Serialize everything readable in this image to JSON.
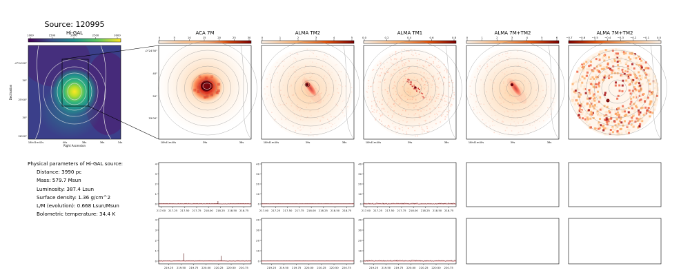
{
  "source_title": "Source: 120995",
  "higal": {
    "title": "Hi-GAL",
    "colorbar_ticks": [
      "1000",
      "1500",
      "2000",
      "2500",
      "3000"
    ],
    "dec_ticks": [
      "-0°24'00\"",
      "30\"",
      "25'00\"",
      "30\"",
      "26'00\""
    ],
    "ra_ticks": [
      "18h41m42s",
      "40s",
      "38s",
      "36s",
      "34s"
    ],
    "xlabel": "Right Ascension",
    "ylabel": "Declination"
  },
  "panels": [
    {
      "title": "ACA 7M",
      "cbar_ticks": [
        "0",
        "5",
        "10",
        "15",
        "20",
        "25",
        "30"
      ],
      "ra_ticks": [
        "18h41m40s",
        "39s",
        "38s"
      ],
      "dec_ticks": [
        "-0°24'30\"",
        "40\"",
        "50\"",
        "25'00\""
      ],
      "style": "aca"
    },
    {
      "title": "ALMA TM2",
      "cbar_ticks": [
        "0",
        "1",
        "2",
        "3",
        "4",
        "5"
      ],
      "ra_ticks": [
        "18h41m40s",
        "39s",
        "38s"
      ],
      "style": "tm2"
    },
    {
      "title": "ALMA TM1",
      "cbar_ticks": [
        "0.0",
        "0.2",
        "0.4",
        "0.6",
        "0.8"
      ],
      "ra_ticks": [
        "18h41m40s",
        "39s",
        "38s"
      ],
      "style": "tm1"
    },
    {
      "title": "ALMA 7M+TM2",
      "cbar_ticks": [
        "0",
        "1",
        "2",
        "3",
        "4",
        "5",
        "6"
      ],
      "ra_ticks": [
        "18h41m40s",
        "39s",
        "38s"
      ],
      "style": "comb"
    },
    {
      "title": "ALMA 7M+TM2",
      "cbar_ticks": [
        "−0.7",
        "−0.6",
        "−0.5",
        "−0.4",
        "−0.3",
        "−0.2",
        "−0.1",
        "0.0"
      ],
      "ra_ticks": [],
      "style": "neg"
    }
  ],
  "params": {
    "heading": "Physical parameters of Hi-GAL source:",
    "lines": [
      "Distance: 3990 pc",
      "Mass: 579.7 Msun",
      "Luminosity: 387.4 Lsun",
      "Surface density: 1.36 g/cm^2",
      "L/M (evolution): 0.668 Lsun/Msun",
      "Bolometric temperature: 34.4 K"
    ]
  },
  "chart_data": {
    "type": "line",
    "spectra_rows": [
      {
        "x_ticks": [
          "217.00",
          "217.25",
          "217.50",
          "217.75",
          "218.00",
          "218.25",
          "218.50",
          "218.75"
        ],
        "xlim": [
          216.95,
          218.9
        ]
      },
      {
        "x_ticks": [
          "219.25",
          "219.50",
          "219.75",
          "220.00",
          "220.25",
          "220.50",
          "220.75"
        ],
        "xlim": [
          219.05,
          220.9
        ]
      }
    ],
    "spectra_panels": [
      {
        "ylim": [
          0,
          4
        ],
        "y_ticks": [
          "0",
          "1",
          "2",
          "3",
          "4"
        ],
        "spikes": [
          [
            [
              218.2,
              0.28
            ]
          ],
          [
            [
              219.55,
              0.75
            ],
            [
              220.3,
              0.5
            ]
          ]
        ]
      },
      {
        "ylim": [
          0,
          40
        ],
        "y_ticks": [
          "0",
          "10",
          "20",
          "30",
          "40"
        ],
        "spikes": [
          [],
          [
            [
              219.45,
              0.8
            ],
            [
              220.3,
              0.6
            ]
          ]
        ]
      },
      {
        "ylim": [
          0,
          40
        ],
        "y_ticks": [
          "0",
          "10",
          "20",
          "30",
          "40"
        ],
        "spikes": [
          [],
          []
        ]
      }
    ]
  }
}
